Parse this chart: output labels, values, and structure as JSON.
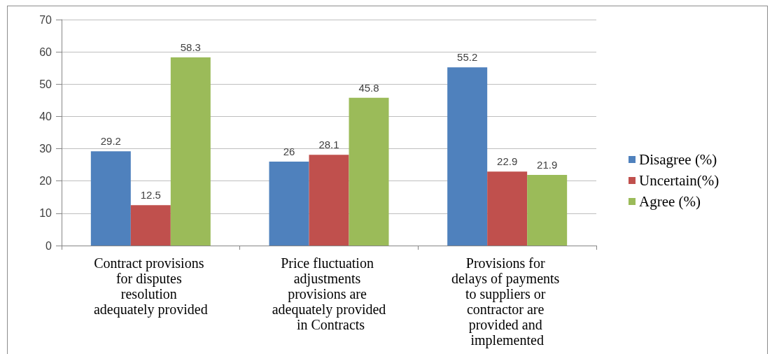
{
  "chart_data": {
    "type": "bar",
    "categories": [
      "Contract provisions for disputes resolution adequately provided",
      "Price fluctuation adjustments provisions are adequately provided in Contracts",
      "Provisions for delays of payments to suppliers or contractor are provided and implemented"
    ],
    "series": [
      {
        "name": "Disagree (%)",
        "color": "#4f81bd",
        "values": [
          29.2,
          26,
          55.2
        ]
      },
      {
        "name": "Uncertain(%)",
        "color": "#c0504d",
        "values": [
          12.5,
          28.1,
          22.9
        ]
      },
      {
        "name": "Agree (%)",
        "color": "#9bbb59",
        "values": [
          58.3,
          45.8,
          21.9
        ]
      }
    ],
    "ylim": [
      0,
      70
    ],
    "yticks": [
      0,
      10,
      20,
      30,
      40,
      50,
      60,
      70
    ],
    "grid": "y",
    "legend": "right",
    "data_labels": true
  }
}
